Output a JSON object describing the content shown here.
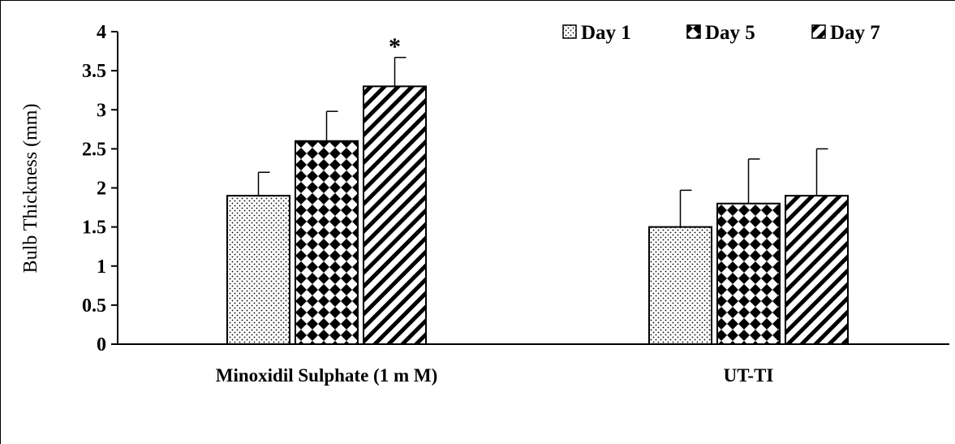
{
  "chart_data": {
    "type": "bar",
    "ylabel": "Bulb Thickness (mm)",
    "xlabel": "",
    "ylim": [
      0,
      4
    ],
    "yticks": [
      "0",
      "0.5",
      "1",
      "1.5",
      "2",
      "2.5",
      "3",
      "3.5",
      "4"
    ],
    "categories": [
      "Minoxidil Sulphate (1 m M)",
      "UT-TI"
    ],
    "series": [
      {
        "name": "Day 1",
        "pattern": "dots",
        "values": [
          1.9,
          1.5
        ],
        "error": [
          0.3,
          0.47
        ]
      },
      {
        "name": "Day 5",
        "pattern": "checkered-diamonds",
        "values": [
          2.6,
          1.8
        ],
        "error": [
          0.38,
          0.57
        ]
      },
      {
        "name": "Day 7",
        "pattern": "diagonal-stripes",
        "values": [
          3.3,
          1.9
        ],
        "error": [
          0.37,
          0.6
        ]
      }
    ],
    "annotations": [
      {
        "category": 0,
        "series": 2,
        "text": "*"
      }
    ],
    "legend_position": "top-right",
    "grid": false,
    "colors": {
      "bar_fill": "#ffffff",
      "pattern": "#000000",
      "axis": "#000000"
    }
  }
}
